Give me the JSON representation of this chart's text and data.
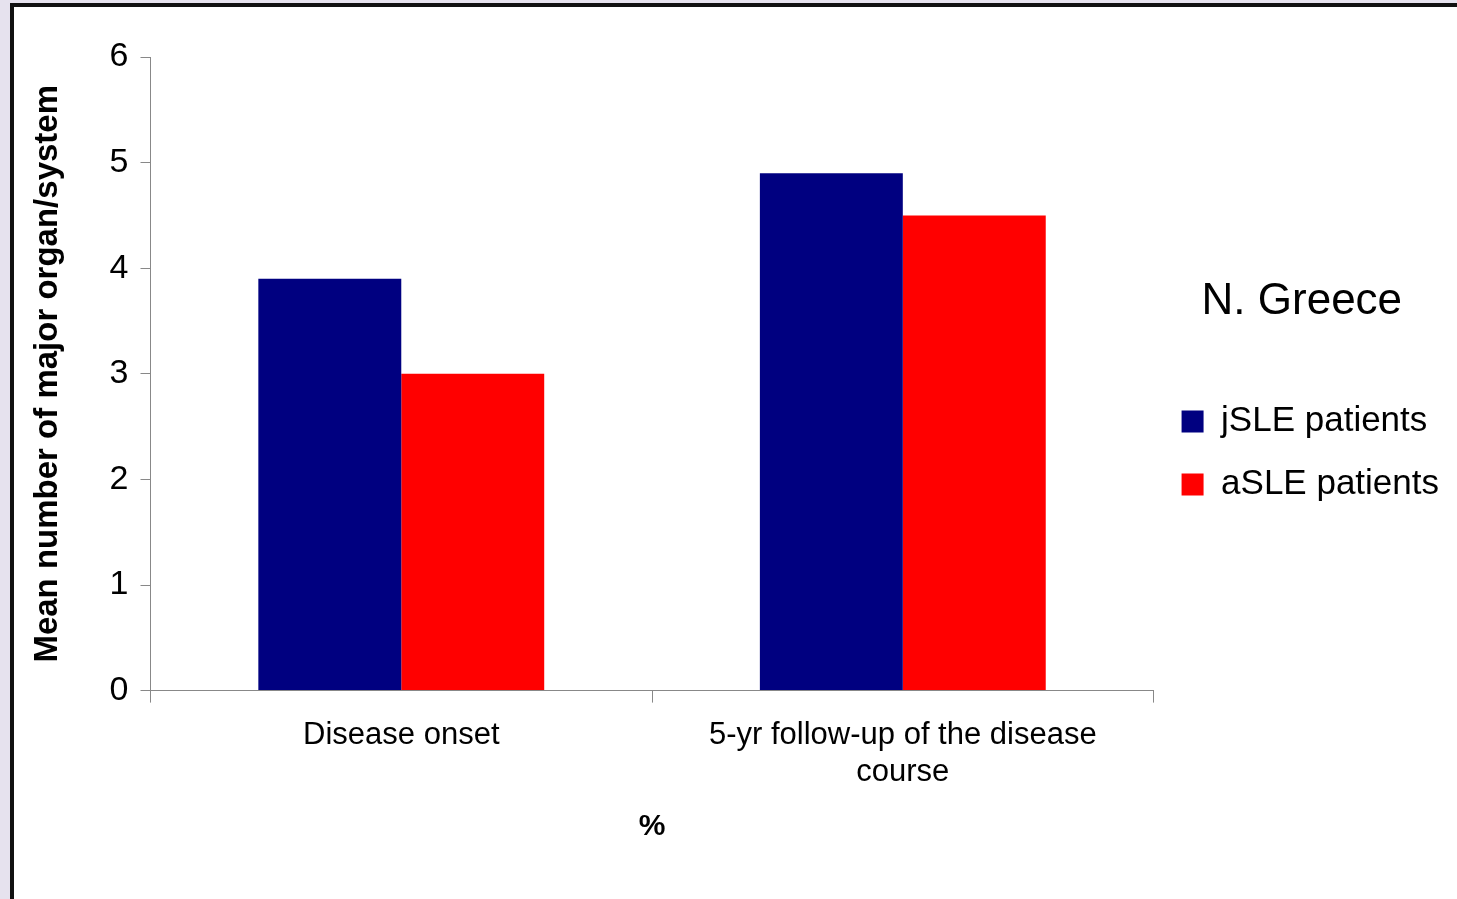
{
  "chart_data": {
    "type": "bar",
    "ylabel": "Mean number of major organ/system",
    "xlabel": "%",
    "categories": [
      "Disease onset",
      "5-yr follow-up of the disease course"
    ],
    "series": [
      {
        "name": "jSLE patients",
        "color": "#000080",
        "values": [
          3.9,
          4.9
        ]
      },
      {
        "name": "aSLE patients",
        "color": "#ff0000",
        "values": [
          3.0,
          4.5
        ]
      }
    ],
    "ylim": [
      0,
      6
    ],
    "yticks": [
      0,
      1,
      2,
      3,
      4,
      5,
      6
    ],
    "grid": false,
    "legend": "right",
    "annotations": [
      "N. Greece"
    ]
  }
}
